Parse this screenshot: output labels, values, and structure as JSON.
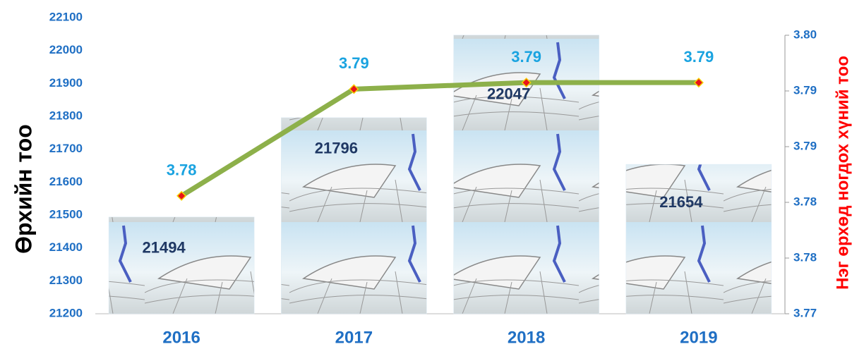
{
  "chart_data": {
    "type": "bar-line",
    "categories": [
      "2016",
      "2017",
      "2018",
      "2019"
    ],
    "series": [
      {
        "name": "Өрхийн тоо",
        "type": "bar",
        "color": "#dbeaf4",
        "values": [
          21494,
          21796,
          22047,
          21654
        ]
      },
      {
        "name": "Нэг өрхөд ногдох хүний тоо",
        "type": "line",
        "axis": "y2",
        "color": "#8db04a",
        "values": [
          3.7827,
          3.7942,
          3.7949,
          3.7949
        ],
        "value_labels": [
          "3.78",
          "3.79",
          "3.79",
          "3.79"
        ]
      }
    ],
    "ylabel": "Өрхийн тоо",
    "y2label": "Нэг өрхөд ногдох хүний тоо",
    "ylim": [
      21200,
      22100
    ],
    "yticks": [
      21200,
      21300,
      21400,
      21500,
      21600,
      21700,
      21800,
      21900,
      22000,
      22100
    ],
    "y2lim": [
      3.77,
      3.8
    ],
    "y2ticks": [
      3.77,
      {
        "value": 3.776,
        "label": "3.78"
      },
      {
        "value": 3.782,
        "label": "3.78"
      },
      {
        "value": 3.788,
        "label": "3.79"
      },
      {
        "value": 3.794,
        "label": "3.79"
      },
      {
        "value": 3.8,
        "label": "3.80"
      }
    ],
    "grid": false
  }
}
